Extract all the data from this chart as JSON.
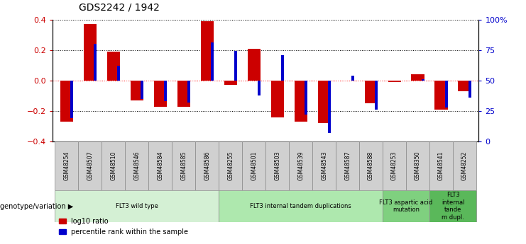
{
  "title": "GDS2242 / 1942",
  "samples": [
    "GSM48254",
    "GSM48507",
    "GSM48510",
    "GSM48546",
    "GSM48584",
    "GSM48585",
    "GSM48586",
    "GSM48255",
    "GSM48501",
    "GSM48503",
    "GSM48539",
    "GSM48543",
    "GSM48587",
    "GSM48588",
    "GSM48253",
    "GSM48350",
    "GSM48541",
    "GSM48252"
  ],
  "log10_ratio": [
    -0.27,
    0.37,
    0.19,
    -0.13,
    -0.17,
    -0.17,
    0.39,
    -0.03,
    0.21,
    -0.24,
    -0.27,
    -0.28,
    0.0,
    -0.15,
    -0.01,
    0.04,
    -0.19,
    -0.07
  ],
  "percentile_rank_pct": [
    19,
    80,
    62,
    35,
    33,
    32,
    81,
    74,
    38,
    71,
    22,
    7,
    54,
    26,
    50,
    51,
    28,
    36
  ],
  "groups": [
    {
      "label": "FLT3 wild type",
      "start": 0,
      "end": 7,
      "color": "#d4f0d4"
    },
    {
      "label": "FLT3 internal tandem duplications",
      "start": 7,
      "end": 14,
      "color": "#aee8ae"
    },
    {
      "label": "FLT3 aspartic acid\nmutation",
      "start": 14,
      "end": 16,
      "color": "#7fd07f"
    },
    {
      "label": "FLT3\ninternal\ntande\nm dupl.",
      "start": 16,
      "end": 18,
      "color": "#5ab85a"
    }
  ],
  "bar_color_red": "#cc0000",
  "bar_color_blue": "#0000cc",
  "ylim": [
    -0.4,
    0.4
  ],
  "yticks_left": [
    -0.4,
    -0.2,
    0.0,
    0.2,
    0.4
  ],
  "yticks_right": [
    0,
    25,
    50,
    75,
    100
  ],
  "spine_color": "#000000",
  "tick_label_color_left": "#cc0000",
  "tick_label_color_right": "#0000cc"
}
